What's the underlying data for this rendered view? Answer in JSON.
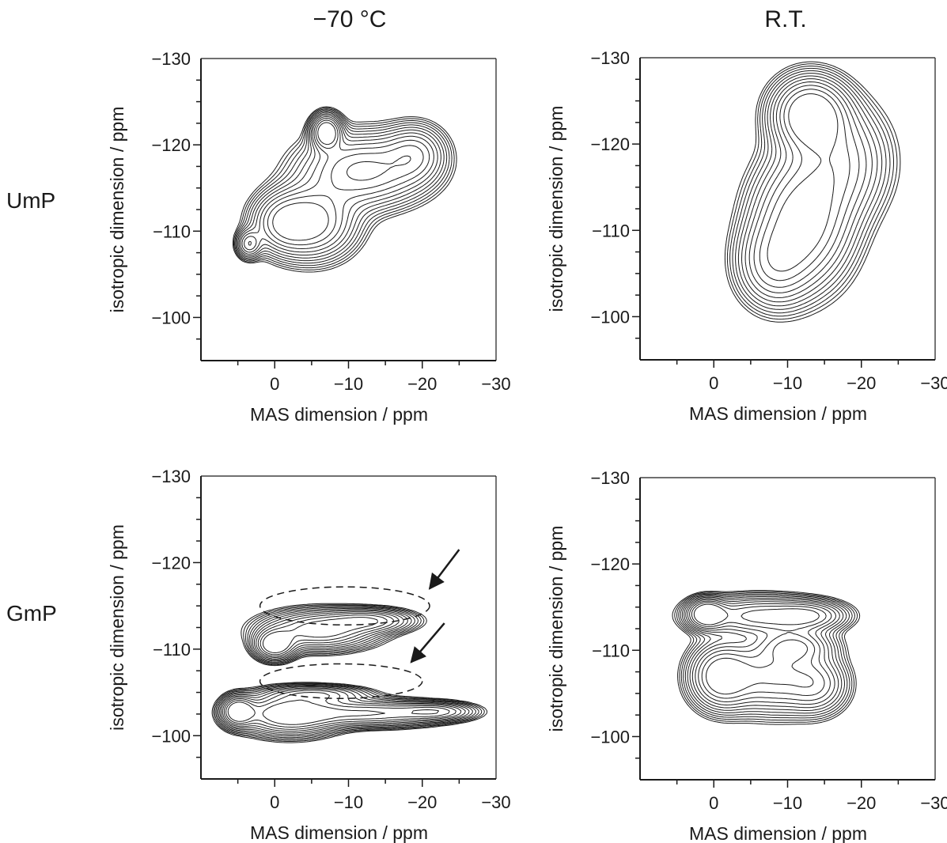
{
  "column_titles": [
    "−70 °C",
    "R.T."
  ],
  "row_labels": [
    "UmP",
    "GmP"
  ],
  "chart_data": [
    {
      "type": "contour",
      "sample": "UmP",
      "temperature": "−70 °C",
      "xlabel": "MAS dimension / ppm",
      "ylabel": "isotropic dimension / ppm",
      "xlim": [
        10,
        -30
      ],
      "ylim": [
        -95,
        -130
      ],
      "xticks": [
        0,
        -10,
        -20,
        -30
      ],
      "xtick_labels": [
        "0",
        "−10",
        "−20",
        "−30"
      ],
      "yticks": [
        -130,
        -120,
        -110,
        -100
      ],
      "ytick_labels": [
        "−130",
        "−120",
        "−110",
        "−100"
      ],
      "peaks": [
        {
          "x": -7,
          "y": -121.5,
          "sx": 1.2,
          "sy": 1.2,
          "amp": 1.0
        },
        {
          "x": -5,
          "y": -111,
          "sx": 3.5,
          "sy": 2.5,
          "amp": 0.8
        },
        {
          "x": -12,
          "y": -117,
          "sx": 5,
          "sy": 2.5,
          "amp": 0.75
        },
        {
          "x": -19,
          "y": -119,
          "sx": 2.5,
          "sy": 2,
          "amp": 0.45
        },
        {
          "x": 3.5,
          "y": -108.5,
          "sx": 1,
          "sy": 1,
          "amp": 0.5
        },
        {
          "x": -1,
          "y": -111,
          "sx": 2.5,
          "sy": 2,
          "amp": 0.5
        }
      ],
      "annotations": []
    },
    {
      "type": "contour",
      "sample": "UmP",
      "temperature": "R.T.",
      "xlabel": "MAS dimension / ppm",
      "ylabel": "isotropic dimension / ppm",
      "xlim": [
        10,
        -30
      ],
      "ylim": [
        -95,
        -130
      ],
      "xticks": [
        0,
        -10,
        -20,
        -30
      ],
      "xtick_labels": [
        "0",
        "−10",
        "−20",
        "−30"
      ],
      "yticks": [
        -130,
        -120,
        -110,
        -100
      ],
      "ytick_labels": [
        "−130",
        "−120",
        "−110",
        "−100"
      ],
      "peaks": [
        {
          "x": -13,
          "y": -123.5,
          "sx": 3,
          "sy": 2.5,
          "amp": 1.0
        },
        {
          "x": -12,
          "y": -111,
          "sx": 4,
          "sy": 4.5,
          "amp": 0.85
        },
        {
          "x": -17,
          "y": -118,
          "sx": 4,
          "sy": 4,
          "amp": 0.5
        },
        {
          "x": -8,
          "y": -106,
          "sx": 3,
          "sy": 3,
          "amp": 0.45
        }
      ],
      "annotations": []
    },
    {
      "type": "contour",
      "sample": "GmP",
      "temperature": "−70 °C",
      "xlabel": "MAS dimension / ppm",
      "ylabel": "isotropic dimension / ppm",
      "xlim": [
        10,
        -30
      ],
      "ylim": [
        -95,
        -130
      ],
      "xticks": [
        0,
        -10,
        -20,
        -30
      ],
      "xtick_labels": [
        "0",
        "−10",
        "−20",
        "−30"
      ],
      "yticks": [
        -130,
        -120,
        -110,
        -100
      ],
      "ytick_labels": [
        "−130",
        "−120",
        "−110",
        "−100"
      ],
      "peaks": [
        {
          "x": 0,
          "y": -110.5,
          "sx": 1.6,
          "sy": 1.0,
          "amp": 1.0
        },
        {
          "x": -6,
          "y": -112.2,
          "sx": 4.5,
          "sy": 1.3,
          "amp": 0.85
        },
        {
          "x": -13,
          "y": -113.3,
          "sx": 3.5,
          "sy": 0.8,
          "amp": 0.6
        },
        {
          "x": 5,
          "y": -102.8,
          "sx": 1.3,
          "sy": 1.0,
          "amp": 1.0
        },
        {
          "x": -2,
          "y": -102.5,
          "sx": 4,
          "sy": 1.4,
          "amp": 0.95
        },
        {
          "x": -13,
          "y": -102.6,
          "sx": 6,
          "sy": 0.9,
          "amp": 0.7
        },
        {
          "x": -22,
          "y": -102.8,
          "sx": 3,
          "sy": 0.6,
          "amp": 0.5
        },
        {
          "x": -6,
          "y": -104.8,
          "sx": 4,
          "sy": 0.6,
          "amp": 0.45
        }
      ],
      "annotations": [
        {
          "shape": "dashed-ellipse",
          "cx": -9.5,
          "cy": -115,
          "rx": 11.5,
          "ry": 2.2
        },
        {
          "shape": "dashed-ellipse",
          "cx": -9,
          "cy": -106.3,
          "rx": 11,
          "ry": 2.0
        },
        {
          "shape": "arrow",
          "from": [
            -25,
            -121.5
          ],
          "to": [
            -21,
            -117
          ]
        },
        {
          "shape": "arrow",
          "from": [
            -23,
            -113
          ],
          "to": [
            -18.5,
            -108.5
          ]
        }
      ]
    },
    {
      "type": "contour",
      "sample": "GmP",
      "temperature": "R.T.",
      "xlabel": "MAS dimension / ppm",
      "ylabel": "isotropic dimension / ppm",
      "xlim": [
        10,
        -30
      ],
      "ylim": [
        -95,
        -130
      ],
      "xticks": [
        0,
        -10,
        -20,
        -30
      ],
      "xtick_labels": [
        "0",
        "−10",
        "−20",
        "−30"
      ],
      "yticks": [
        -130,
        -120,
        -110,
        -100
      ],
      "ytick_labels": [
        "−130",
        "−120",
        "−110",
        "−100"
      ],
      "peaks": [
        {
          "x": 1,
          "y": -114.2,
          "sx": 1.5,
          "sy": 1.0,
          "amp": 1.0
        },
        {
          "x": -6,
          "y": -114,
          "sx": 5,
          "sy": 1.3,
          "amp": 0.75
        },
        {
          "x": -13,
          "y": -114,
          "sx": 3,
          "sy": 1.0,
          "amp": 0.55
        },
        {
          "x": -1,
          "y": -107,
          "sx": 2.5,
          "sy": 2.2,
          "amp": 0.9
        },
        {
          "x": -8,
          "y": -107,
          "sx": 4,
          "sy": 2.5,
          "amp": 0.7
        },
        {
          "x": -11,
          "y": -110.5,
          "sx": 3,
          "sy": 1.2,
          "amp": 0.6
        },
        {
          "x": -14,
          "y": -106,
          "sx": 2.5,
          "sy": 2,
          "amp": 0.45
        }
      ],
      "annotations": []
    }
  ]
}
